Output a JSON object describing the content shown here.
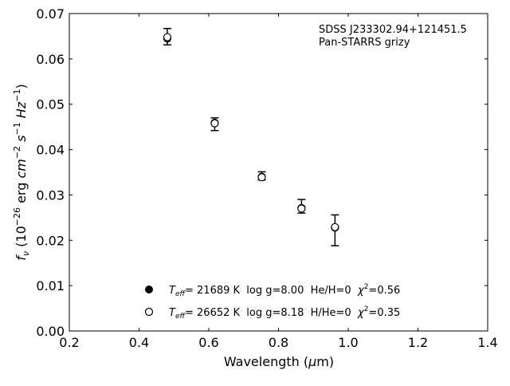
{
  "chart_data": {
    "type": "scatter",
    "xlabel": "Wavelength (μm)",
    "ylabel": "f_ν (10^-26 erg cm^-2 s^-1 Hz^-1)",
    "xlim": [
      0.2,
      1.4
    ],
    "ylim": [
      0.0,
      0.07
    ],
    "xticks": [
      "0.2",
      "0.4",
      "0.6",
      "0.8",
      "1.0",
      "1.2",
      "1.4"
    ],
    "yticks": [
      "0.00",
      "0.01",
      "0.02",
      "0.03",
      "0.04",
      "0.05",
      "0.06",
      "0.07"
    ],
    "grid": false,
    "annotation": [
      "SDSS J233302.94+121451.5",
      "Pan-STARRS grizy"
    ],
    "observed": {
      "x": [
        0.481,
        0.617,
        0.752,
        0.866,
        0.962
      ],
      "y": [
        0.0649,
        0.0456,
        0.0342,
        0.0275,
        0.0222
      ],
      "yerr": [
        0.0018,
        0.0014,
        0.0009,
        0.0015,
        0.0034
      ]
    },
    "series": [
      {
        "name": "T_eff= 21689 K  log g=8.00  He/H=0  χ²=0.56",
        "marker": "filled",
        "x": [
          0.481,
          0.617,
          0.752,
          0.866,
          0.962
        ],
        "y": [
          0.0645,
          0.0459,
          0.034,
          0.0271,
          0.0228
        ]
      },
      {
        "name": "T_eff= 26652 K  log g=8.18  H/He=0  χ²=0.35",
        "marker": "open",
        "x": [
          0.481,
          0.617,
          0.752,
          0.866,
          0.962
        ],
        "y": [
          0.0648,
          0.0458,
          0.0339,
          0.027,
          0.0229
        ]
      }
    ],
    "legend": {
      "location": "lower-center",
      "entries": [
        {
          "marker": "filled",
          "teff": "21689 K",
          "rest": "  log g=8.00  He/H=0  ",
          "chi": "=0.56"
        },
        {
          "marker": "open",
          "teff": "26652 K",
          "rest": "  log g=8.18  H/He=0  ",
          "chi": "=0.35"
        }
      ]
    },
    "colors": {
      "markers": "#000000",
      "axes": "#000000",
      "background": "#ffffff"
    }
  }
}
